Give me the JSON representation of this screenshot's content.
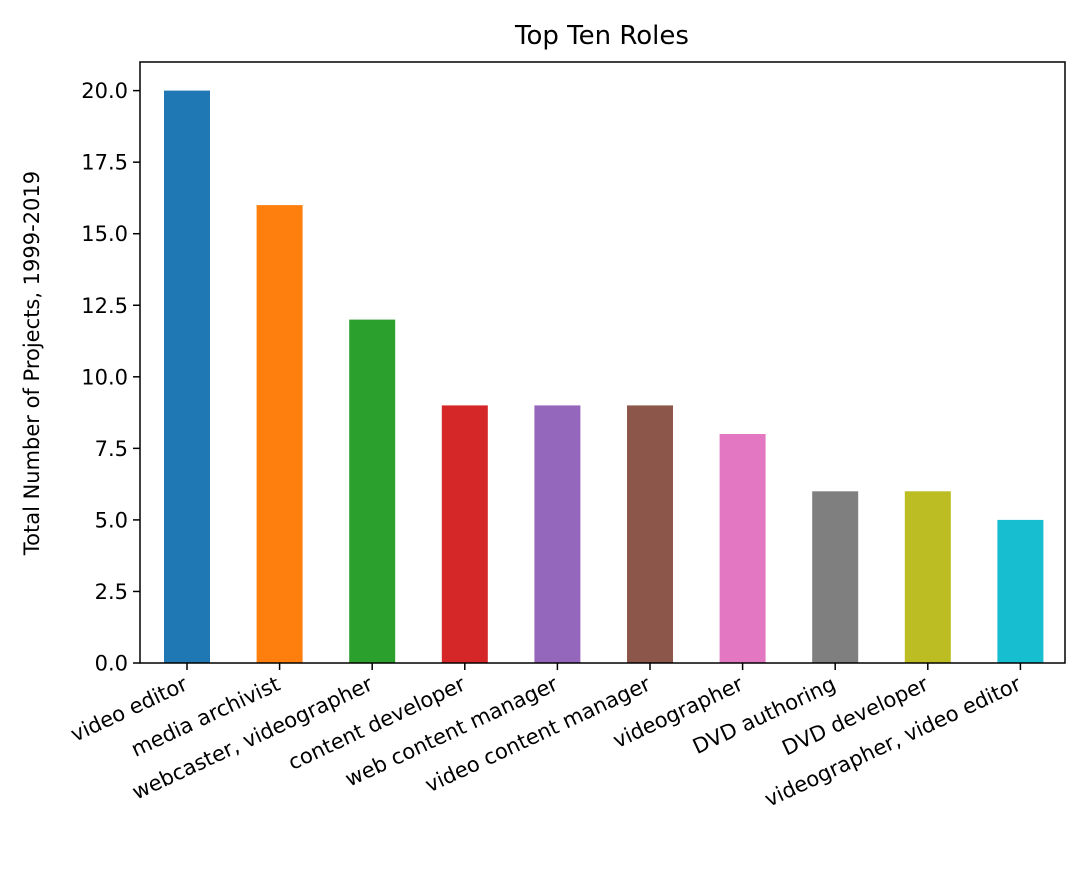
{
  "chart_data": {
    "type": "bar",
    "title": "Top Ten Roles",
    "xlabel": "",
    "ylabel": "Total Number of Projects, 1999-2019",
    "categories": [
      "video editor",
      "media archivist",
      "webcaster, videographer",
      "content developer",
      "web content manager",
      "video content manager",
      "videographer",
      "DVD authoring",
      "DVD developer",
      "videographer, video editor"
    ],
    "values": [
      20,
      16,
      12,
      9,
      9,
      9,
      8,
      6,
      6,
      5
    ],
    "colors": [
      "#1f77b4",
      "#ff7f0e",
      "#2ca02c",
      "#d62728",
      "#9467bd",
      "#8c564b",
      "#e377c2",
      "#7f7f7f",
      "#bcbd22",
      "#17becf"
    ],
    "ylim": [
      0,
      21
    ],
    "yticks": [
      "0.0",
      "2.5",
      "5.0",
      "7.5",
      "10.0",
      "12.5",
      "15.0",
      "17.5",
      "20.0"
    ],
    "grid": false,
    "legend": "none"
  }
}
